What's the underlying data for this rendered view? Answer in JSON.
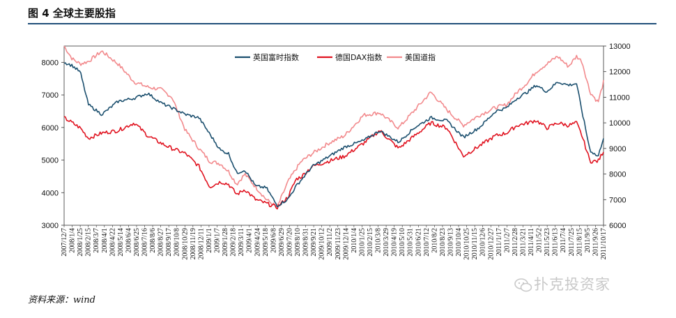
{
  "figure": {
    "title": "图 4  全球主要股指"
  },
  "source": "资料来源：wind",
  "watermark": {
    "text": "扑克投资家",
    "icon": "wechat-icon"
  },
  "chart_data": {
    "type": "line",
    "title": "",
    "xlabel": "",
    "y_left": {
      "ylim": [
        3000,
        8500
      ],
      "ticks": [
        3000,
        4000,
        5000,
        6000,
        7000,
        8000
      ]
    },
    "y_right": {
      "ylim": [
        6000,
        13000
      ],
      "ticks": [
        6000,
        7000,
        8000,
        9000,
        10000,
        11000,
        12000,
        13000
      ]
    },
    "x_tick_labels": [
      "2007/12/7",
      "2008/1/4",
      "2008/1/25",
      "2008/2/15",
      "2008/3/7",
      "2008/4/1",
      "2008/4/22",
      "2008/5/14",
      "2008/6/4",
      "2008/6/25",
      "2008/7/16",
      "2008/8/6",
      "2008/8/27",
      "2008/9/17",
      "2008/10/8",
      "2008/10/29",
      "2008/11/19",
      "2008/12/11",
      "2009/1/1",
      "2009/1/7",
      "2009/1/28",
      "2009/2/18",
      "2009/3/11",
      "2009/4/1",
      "2009/4/24",
      "2009/5/18",
      "2009/6/8",
      "2009/6/29",
      "2009/7/20",
      "2009/8/10",
      "2009/8/31",
      "2009/9/21",
      "2009/10/12",
      "2009/11/2",
      "2009/11/23",
      "2009/12/14",
      "2010/1/4",
      "2010/1/25",
      "2010/2/15",
      "2010/3/8",
      "2010/3/29",
      "2010/4/19",
      "2010/5/10",
      "2010/5/31",
      "2010/6/21",
      "2010/7/12",
      "2010/8/2",
      "2010/8/23",
      "2010/9/13",
      "2010/10/4",
      "2010/10/25",
      "2010/11/15",
      "2010/12/6",
      "2010/12/27",
      "2011/1/17",
      "2011/2/7",
      "2011/2/28",
      "2011/3/21",
      "2011/4/11",
      "2011/5/2",
      "2011/5/23",
      "2011/6/13",
      "2011/7/4",
      "2011/7/25",
      "2011/8/15",
      "2011/9/5",
      "2011/9/26",
      "2011/10/17"
    ],
    "grid": false,
    "legend_placement": "top-center",
    "x_fraction": [
      0,
      0.015,
      0.03,
      0.045,
      0.07,
      0.1,
      0.13,
      0.155,
      0.18,
      0.2,
      0.225,
      0.25,
      0.27,
      0.29,
      0.305,
      0.32,
      0.335,
      0.355,
      0.375,
      0.395,
      0.415,
      0.43,
      0.44,
      0.46,
      0.49,
      0.52,
      0.555,
      0.585,
      0.62,
      0.65,
      0.68,
      0.71,
      0.74,
      0.77,
      0.8,
      0.82,
      0.84,
      0.86,
      0.875,
      0.895,
      0.915,
      0.935,
      0.95,
      0.96,
      0.975,
      0.99,
      1.0
    ],
    "series": [
      {
        "name": "英国富时指数",
        "color": "#1b4f6e",
        "axis": "left",
        "values": [
          8000,
          7900,
          7700,
          6700,
          6400,
          6800,
          6900,
          7050,
          6750,
          6600,
          6400,
          6300,
          5800,
          5300,
          5200,
          4600,
          4700,
          4200,
          4150,
          3600,
          3800,
          4200,
          4400,
          4800,
          5100,
          5400,
          5600,
          5900,
          5550,
          6000,
          6300,
          6200,
          5700,
          6000,
          6500,
          6600,
          6900,
          7100,
          7300,
          7100,
          7400,
          7300,
          7350,
          6500,
          5300,
          5100,
          5700
        ]
      },
      {
        "name": "德国DAX指数",
        "color": "#e0121f",
        "axis": "right",
        "values": [
          10200,
          10000,
          9800,
          9400,
          9600,
          9700,
          10000,
          9500,
          9200,
          9000,
          8800,
          8300,
          7500,
          7700,
          7600,
          7200,
          7400,
          7000,
          6850,
          6700,
          7100,
          7800,
          7900,
          8300,
          8500,
          8700,
          9200,
          9700,
          9000,
          9500,
          10000,
          9800,
          8700,
          9100,
          9500,
          9600,
          9900,
          10000,
          10100,
          9800,
          10000,
          9900,
          10000,
          9500,
          8500,
          8500,
          8900
        ]
      },
      {
        "name": "美国道指",
        "color": "#f2898c",
        "axis": "right",
        "values": [
          13000,
          12500,
          12300,
          12400,
          12800,
          12300,
          11600,
          11400,
          11300,
          11000,
          9700,
          9000,
          8500,
          8400,
          8100,
          7600,
          8000,
          7500,
          7000,
          6700,
          7700,
          8200,
          8500,
          8800,
          9200,
          9500,
          10300,
          10400,
          9800,
          10500,
          11200,
          10500,
          9900,
          10300,
          10600,
          10700,
          11200,
          11600,
          12000,
          12300,
          12600,
          12200,
          12600,
          12400,
          11200,
          10800,
          11600
        ]
      }
    ]
  }
}
